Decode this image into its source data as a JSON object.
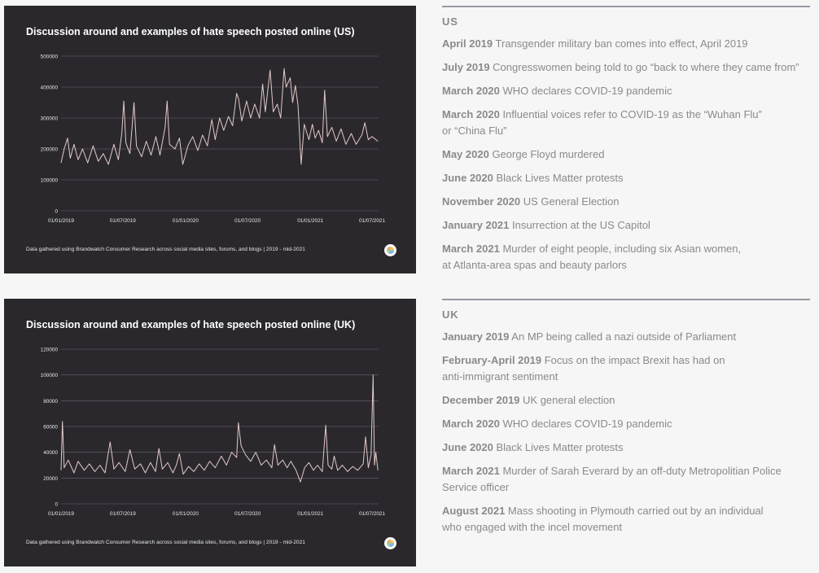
{
  "events_us": {
    "heading": "US",
    "items": [
      {
        "date": "April 2019",
        "text": "Transgender military ban comes into effect, April 2019"
      },
      {
        "date": "July 2019",
        "text": "Congresswomen being told to go “back to where they came from”"
      },
      {
        "date": "March 2020",
        "text": "WHO declares COVID-19 pandemic"
      },
      {
        "date": "March 2020",
        "text": "Influential voices refer to COVID-19 as the “Wuhan Flu”\nor “China Flu”"
      },
      {
        "date": "May 2020",
        "text": "George Floyd murdered"
      },
      {
        "date": "June 2020",
        "text": "Black Lives Matter protests"
      },
      {
        "date": "November 2020",
        "text": "US General Election"
      },
      {
        "date": "January 2021",
        "text": "Insurrection at the US Capitol"
      },
      {
        "date": "March 2021",
        "text": "Murder of eight people, including six Asian women,\nat Atlanta-area spas and beauty parlors"
      }
    ]
  },
  "events_uk": {
    "heading": "UK",
    "items": [
      {
        "date": "January 2019",
        "text": "An MP being  called a nazi outside of Parliament"
      },
      {
        "date": "February-April 2019",
        "text": "Focus on the impact Brexit has had on\nanti-immigrant sentiment"
      },
      {
        "date": "December 2019",
        "text": "UK general election"
      },
      {
        "date": "March 2020",
        "text": "WHO declares COVID-19 pandemic"
      },
      {
        "date": "June 2020",
        "text": "Black Lives Matter protests"
      },
      {
        "date": "March 2021",
        "text": "Murder of Sarah Everard by an off-duty Metropolitian Police\nService officer"
      },
      {
        "date": "August 2021",
        "text": "Mass shooting in Plymouth carried out by an individual\nwho engaged with the incel movement"
      }
    ]
  },
  "colors": {
    "panel_bg": "#2a282d",
    "line": "#e3c9c9",
    "grid": "#6b6970",
    "tick_text": "#e6e6e6",
    "text": "#8a8a8a"
  },
  "chart_data": [
    {
      "type": "line",
      "title": "Discussion around and examples of hate speech posted online (US)",
      "footnote": "Data gathered using Brandwatch Consumer Research across social media sites, forums, and blogs | 2019 - mid-2021",
      "x_ticks": [
        "01/01/2019",
        "01/07/2019",
        "01/01/2020",
        "01/07/2020",
        "01/01/2021",
        "01/07/2021"
      ],
      "y_ticks": [
        "0",
        "100000",
        "200000",
        "300000",
        "400000",
        "500000"
      ],
      "ylim": [
        0,
        500000
      ],
      "x_domain": [
        "2019-01-01",
        "2021-07-20"
      ],
      "grid": true,
      "series": [
        {
          "values": [
            [
              "2019-01-01",
              155000
            ],
            [
              "2019-01-10",
              200000
            ],
            [
              "2019-01-20",
              235000
            ],
            [
              "2019-01-28",
              170000
            ],
            [
              "2019-02-08",
              215000
            ],
            [
              "2019-02-20",
              165000
            ],
            [
              "2019-03-05",
              200000
            ],
            [
              "2019-03-20",
              155000
            ],
            [
              "2019-04-05",
              210000
            ],
            [
              "2019-04-20",
              160000
            ],
            [
              "2019-05-05",
              185000
            ],
            [
              "2019-05-20",
              150000
            ],
            [
              "2019-06-05",
              215000
            ],
            [
              "2019-06-18",
              165000
            ],
            [
              "2019-06-28",
              250000
            ],
            [
              "2019-07-04",
              355000
            ],
            [
              "2019-07-10",
              220000
            ],
            [
              "2019-07-22",
              185000
            ],
            [
              "2019-08-03",
              350000
            ],
            [
              "2019-08-10",
              210000
            ],
            [
              "2019-08-25",
              175000
            ],
            [
              "2019-09-08",
              225000
            ],
            [
              "2019-09-22",
              180000
            ],
            [
              "2019-10-06",
              240000
            ],
            [
              "2019-10-18",
              180000
            ],
            [
              "2019-11-02",
              270000
            ],
            [
              "2019-11-08",
              355000
            ],
            [
              "2019-11-15",
              215000
            ],
            [
              "2019-12-01",
              200000
            ],
            [
              "2019-12-14",
              235000
            ],
            [
              "2019-12-24",
              150000
            ],
            [
              "2020-01-08",
              210000
            ],
            [
              "2020-01-22",
              240000
            ],
            [
              "2020-02-06",
              195000
            ],
            [
              "2020-02-20",
              245000
            ],
            [
              "2020-03-05",
              210000
            ],
            [
              "2020-03-18",
              295000
            ],
            [
              "2020-03-28",
              230000
            ],
            [
              "2020-04-10",
              300000
            ],
            [
              "2020-04-22",
              260000
            ],
            [
              "2020-05-06",
              305000
            ],
            [
              "2020-05-18",
              275000
            ],
            [
              "2020-05-30",
              380000
            ],
            [
              "2020-06-05",
              360000
            ],
            [
              "2020-06-14",
              290000
            ],
            [
              "2020-06-28",
              355000
            ],
            [
              "2020-07-10",
              300000
            ],
            [
              "2020-07-22",
              345000
            ],
            [
              "2020-08-05",
              300000
            ],
            [
              "2020-08-14",
              410000
            ],
            [
              "2020-08-22",
              320000
            ],
            [
              "2020-09-05",
              455000
            ],
            [
              "2020-09-14",
              320000
            ],
            [
              "2020-09-26",
              345000
            ],
            [
              "2020-10-06",
              300000
            ],
            [
              "2020-10-16",
              460000
            ],
            [
              "2020-10-22",
              400000
            ],
            [
              "2020-11-03",
              430000
            ],
            [
              "2020-11-10",
              350000
            ],
            [
              "2020-11-18",
              405000
            ],
            [
              "2020-11-26",
              340000
            ],
            [
              "2020-12-05",
              150000
            ],
            [
              "2020-12-14",
              280000
            ],
            [
              "2020-12-28",
              230000
            ],
            [
              "2021-01-07",
              280000
            ],
            [
              "2021-01-15",
              235000
            ],
            [
              "2021-01-25",
              260000
            ],
            [
              "2021-02-05",
              220000
            ],
            [
              "2021-02-12",
              390000
            ],
            [
              "2021-02-20",
              240000
            ],
            [
              "2021-03-05",
              270000
            ],
            [
              "2021-03-18",
              225000
            ],
            [
              "2021-04-01",
              265000
            ],
            [
              "2021-04-15",
              215000
            ],
            [
              "2021-05-01",
              250000
            ],
            [
              "2021-05-15",
              215000
            ],
            [
              "2021-06-01",
              245000
            ],
            [
              "2021-06-10",
              285000
            ],
            [
              "2021-06-20",
              230000
            ],
            [
              "2021-07-01",
              240000
            ],
            [
              "2021-07-18",
              225000
            ]
          ]
        }
      ]
    },
    {
      "type": "line",
      "title": "Discussion around and examples of hate speech posted online (UK)",
      "footnote": "Data gathered using Brandwatch Consumer Research across social media sites, forums, and blogs | 2019 - mid-2021",
      "x_ticks": [
        "01/01/2019",
        "01/07/2019",
        "01/01/2020",
        "01/07/2020",
        "01/01/2021",
        "01/07/2021"
      ],
      "y_ticks": [
        "0",
        "20000",
        "40000",
        "60000",
        "80000",
        "100000",
        "120000"
      ],
      "ylim": [
        0,
        120000
      ],
      "x_domain": [
        "2019-01-01",
        "2021-07-20"
      ],
      "grid": true,
      "series": [
        {
          "values": [
            [
              "2019-01-01",
              26000
            ],
            [
              "2019-01-05",
              64000
            ],
            [
              "2019-01-10",
              28000
            ],
            [
              "2019-01-22",
              34000
            ],
            [
              "2019-02-08",
              24000
            ],
            [
              "2019-02-20",
              33000
            ],
            [
              "2019-03-10",
              26000
            ],
            [
              "2019-03-25",
              31000
            ],
            [
              "2019-04-10",
              25000
            ],
            [
              "2019-04-25",
              30000
            ],
            [
              "2019-05-10",
              24000
            ],
            [
              "2019-05-25",
              48000
            ],
            [
              "2019-06-05",
              27000
            ],
            [
              "2019-06-20",
              32000
            ],
            [
              "2019-07-08",
              25000
            ],
            [
              "2019-07-22",
              42000
            ],
            [
              "2019-08-05",
              27000
            ],
            [
              "2019-08-22",
              31000
            ],
            [
              "2019-09-05",
              24000
            ],
            [
              "2019-09-20",
              32000
            ],
            [
              "2019-10-05",
              25000
            ],
            [
              "2019-10-15",
              43000
            ],
            [
              "2019-10-25",
              27000
            ],
            [
              "2019-11-10",
              32000
            ],
            [
              "2019-11-25",
              24000
            ],
            [
              "2019-12-05",
              30000
            ],
            [
              "2019-12-14",
              39000
            ],
            [
              "2019-12-25",
              23000
            ],
            [
              "2020-01-10",
              29000
            ],
            [
              "2020-01-25",
              25000
            ],
            [
              "2020-02-10",
              31000
            ],
            [
              "2020-02-25",
              26000
            ],
            [
              "2020-03-12",
              33000
            ],
            [
              "2020-03-28",
              28000
            ],
            [
              "2020-04-15",
              37000
            ],
            [
              "2020-04-30",
              30000
            ],
            [
              "2020-05-15",
              40000
            ],
            [
              "2020-05-30",
              36000
            ],
            [
              "2020-06-04",
              63000
            ],
            [
              "2020-06-12",
              45000
            ],
            [
              "2020-06-25",
              38000
            ],
            [
              "2020-07-10",
              33000
            ],
            [
              "2020-07-25",
              40000
            ],
            [
              "2020-08-10",
              30000
            ],
            [
              "2020-08-25",
              34000
            ],
            [
              "2020-09-10",
              28000
            ],
            [
              "2020-09-18",
              46000
            ],
            [
              "2020-09-28",
              30000
            ],
            [
              "2020-10-12",
              34000
            ],
            [
              "2020-10-25",
              28000
            ],
            [
              "2020-11-05",
              33000
            ],
            [
              "2020-11-20",
              26000
            ],
            [
              "2020-12-03",
              17000
            ],
            [
              "2020-12-15",
              28000
            ],
            [
              "2020-12-28",
              32000
            ],
            [
              "2021-01-10",
              26000
            ],
            [
              "2021-01-22",
              30000
            ],
            [
              "2021-02-05",
              25000
            ],
            [
              "2021-02-15",
              61000
            ],
            [
              "2021-02-22",
              30000
            ],
            [
              "2021-03-05",
              27000
            ],
            [
              "2021-03-12",
              37000
            ],
            [
              "2021-03-22",
              26000
            ],
            [
              "2021-04-05",
              30000
            ],
            [
              "2021-04-20",
              25000
            ],
            [
              "2021-05-05",
              29000
            ],
            [
              "2021-05-20",
              26000
            ],
            [
              "2021-06-05",
              31000
            ],
            [
              "2021-06-12",
              52000
            ],
            [
              "2021-06-20",
              28000
            ],
            [
              "2021-06-28",
              38000
            ],
            [
              "2021-07-04",
              100000
            ],
            [
              "2021-07-08",
              30000
            ],
            [
              "2021-07-12",
              40000
            ],
            [
              "2021-07-18",
              26000
            ]
          ]
        }
      ]
    }
  ]
}
